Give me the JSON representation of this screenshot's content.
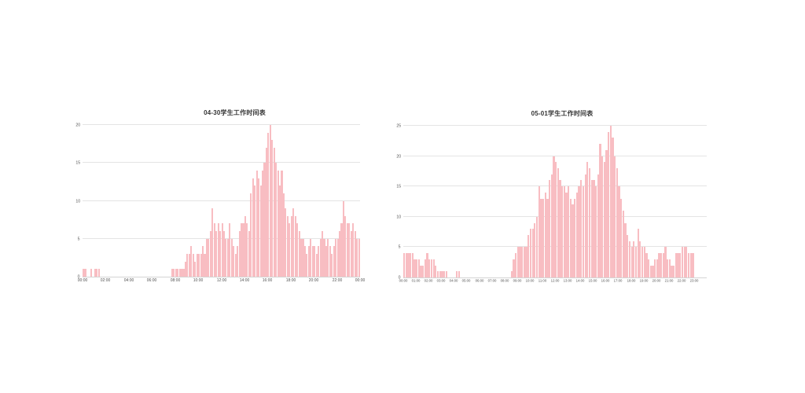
{
  "colors": {
    "bar": "#f8bdc2",
    "grid": "#e4e4e4",
    "axis": "#d4d4d4",
    "tick_label": "#555555",
    "title": "#333333",
    "background": "#ffffff"
  },
  "chart_data": [
    {
      "type": "bar",
      "title": "04-30学生工作时间表",
      "xlabel": "",
      "ylabel": "",
      "ylim": [
        0,
        20
      ],
      "y_ticks": [
        0,
        5,
        10,
        15,
        20
      ],
      "grid": "horizontal-only",
      "legend": "none",
      "x_tick_labels": [
        "00:00",
        "02:00",
        "04:00",
        "06:00",
        "08:00",
        "10:00",
        "12:00",
        "14:00",
        "16:00",
        "18:00",
        "20:00",
        "22:00",
        "00:00"
      ],
      "x_tick_step_hours": 2,
      "hours_total": 24,
      "bins_per_hour": 6,
      "values": [
        1,
        1,
        0,
        0,
        1,
        0,
        1,
        1,
        1,
        0,
        0,
        0,
        0,
        0,
        0,
        0,
        0,
        0,
        0,
        0,
        0,
        0,
        0,
        0,
        0,
        0,
        0,
        0,
        0,
        0,
        0,
        0,
        0,
        0,
        0,
        0,
        0,
        0,
        0,
        0,
        0,
        0,
        0,
        0,
        0,
        0,
        1,
        1,
        1,
        1,
        1,
        1,
        1,
        2,
        3,
        3,
        4,
        3,
        2,
        3,
        3,
        3,
        4,
        3,
        5,
        5,
        6,
        9,
        7,
        6,
        7,
        6,
        7,
        6,
        5,
        5,
        7,
        5,
        4,
        3,
        4,
        6,
        7,
        7,
        8,
        7,
        6,
        11,
        13,
        12,
        14,
        13,
        12,
        14,
        15,
        17,
        19,
        20,
        18,
        17,
        15,
        14,
        12,
        14,
        11,
        9,
        8,
        7,
        8,
        9,
        8,
        7,
        6,
        5,
        5,
        4,
        3,
        4,
        5,
        4,
        4,
        3,
        4,
        5,
        6,
        5,
        4,
        5,
        4,
        3,
        4,
        5,
        5,
        6,
        7,
        10,
        8,
        7,
        7,
        6,
        7,
        6,
        5,
        5
      ]
    },
    {
      "type": "bar",
      "title": "05-01学生工作时间表",
      "xlabel": "",
      "ylabel": "",
      "ylim": [
        0,
        25
      ],
      "y_ticks": [
        0,
        5,
        10,
        15,
        20,
        25
      ],
      "grid": "horizontal-only",
      "legend": "none",
      "x_tick_labels": [
        "00:00",
        "01:00",
        "02:00",
        "03:00",
        "04:00",
        "05:00",
        "06:00",
        "07:00",
        "08:00",
        "09:00",
        "10:00",
        "11:00",
        "12:00",
        "13:00",
        "14:00",
        "15:00",
        "16:00",
        "17:00",
        "18:00",
        "19:00",
        "20:00",
        "21:00",
        "22:00",
        "23:00"
      ],
      "x_tick_step_hours": 1,
      "hours_total": 24,
      "bins_per_hour": 6,
      "values": [
        4,
        4,
        4,
        4,
        4,
        3,
        3,
        3,
        2,
        2,
        3,
        4,
        3,
        3,
        3,
        2,
        1,
        1,
        1,
        1,
        1,
        0,
        0,
        0,
        0,
        1,
        1,
        0,
        0,
        0,
        0,
        0,
        0,
        0,
        0,
        0,
        0,
        0,
        0,
        0,
        0,
        0,
        0,
        0,
        0,
        0,
        0,
        0,
        0,
        0,
        0,
        1,
        3,
        4,
        5,
        5,
        5,
        5,
        5,
        7,
        8,
        8,
        9,
        10,
        15,
        13,
        13,
        14,
        13,
        16,
        17,
        20,
        19,
        18,
        16,
        15,
        15,
        14,
        15,
        13,
        12,
        13,
        14,
        15,
        16,
        15,
        17,
        19,
        18,
        16,
        16,
        15,
        17,
        22,
        20,
        19,
        21,
        24,
        25,
        23,
        20,
        18,
        15,
        13,
        11,
        9,
        7,
        6,
        5,
        6,
        5,
        8,
        6,
        5,
        5,
        4,
        3,
        2,
        2,
        3,
        3,
        4,
        4,
        4,
        5,
        3,
        3,
        2,
        2,
        4,
        4,
        4,
        5,
        5,
        5,
        4,
        4,
        4,
        0,
        0,
        0,
        0,
        0,
        0
      ]
    }
  ]
}
